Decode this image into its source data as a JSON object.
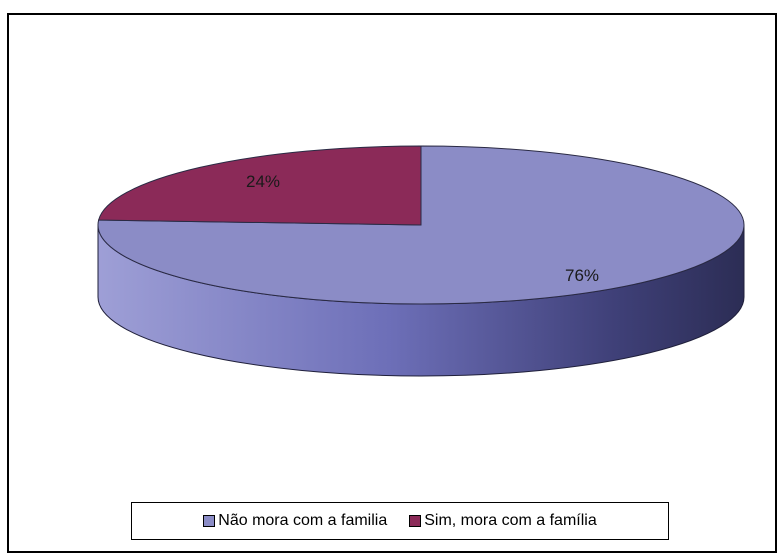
{
  "chart_data": {
    "type": "pie",
    "style": "3d",
    "categories": [
      "Não mora com a familia",
      "Sim, mora com a família"
    ],
    "values": [
      76,
      24
    ],
    "data_labels": [
      "76%",
      "24%"
    ],
    "colors": [
      "#8b8cc6",
      "#8b2a58"
    ],
    "legend_position": "bottom",
    "title": ""
  }
}
